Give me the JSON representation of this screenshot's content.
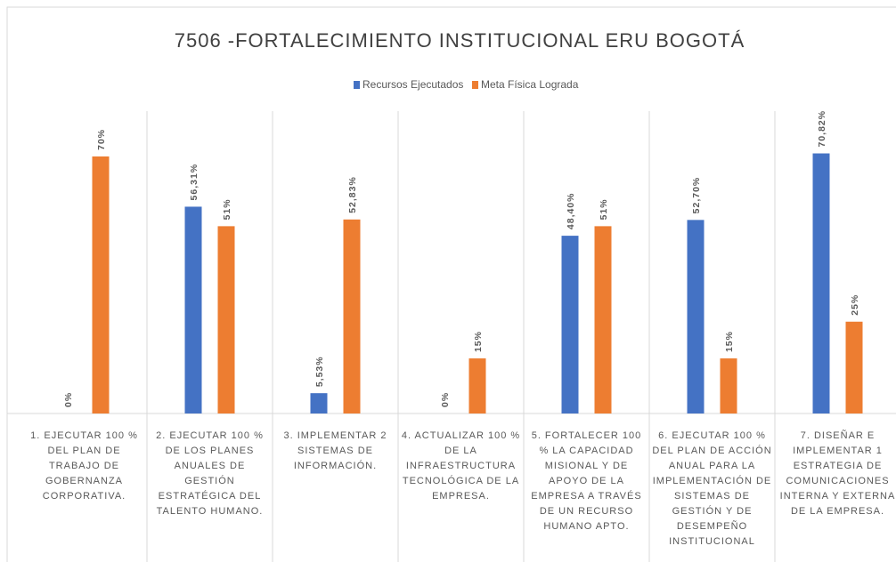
{
  "chart_data": {
    "type": "bar",
    "title": "7506 -FORTALECIMIENTO  INSTITUCIONAL  ERU BOGOTÁ",
    "categories": [
      "1. EJECUTAR 100 % DEL PLAN DE TRABAJO DE GOBERNANZA CORPORATIVA.",
      "2. EJECUTAR 100 % DE LOS PLANES ANUALES DE GESTIÓN ESTRATÉGICA DEL TALENTO HUMANO.",
      "3. IMPLEMENTAR 2 SISTEMAS DE INFORMACIÓN.",
      "4. ACTUALIZAR 100 % DE LA INFRAESTRUCTURA TECNOLÓGICA DE LA EMPRESA.",
      "5. FORTALECER 100 % LA CAPACIDAD MISIONAL Y DE APOYO DE LA EMPRESA A TRAVÉS DE UN RECURSO HUMANO APTO.",
      "6. EJECUTAR 100 % DEL PLAN DE ACCIÓN ANUAL PARA LA IMPLEMENTACIÓN DE SISTEMAS DE GESTIÓN Y DE DESEMPEÑO INSTITUCIONAL",
      "7. DISEÑAR E IMPLEMENTAR 1 ESTRATEGIA DE COMUNICACIONES INTERNA Y EXTERNA DE LA EMPRESA."
    ],
    "series": [
      {
        "name": "Recursos Ejecutados",
        "color": "#4472c4",
        "values": [
          0,
          56.31,
          5.53,
          0,
          48.4,
          52.7,
          70.82
        ],
        "value_labels": [
          "0%",
          "56,31%",
          "5,53%",
          "0%",
          "48,40%",
          "52,70%",
          "70,82%"
        ]
      },
      {
        "name": "Meta Física Lograda",
        "color": "#ed7d31",
        "values": [
          70,
          51,
          52.83,
          15,
          51,
          15,
          25
        ],
        "value_labels": [
          "70%",
          "51%",
          "52,83%",
          "15%",
          "51%",
          "15%",
          "25%"
        ]
      }
    ],
    "legend": "top"
  }
}
